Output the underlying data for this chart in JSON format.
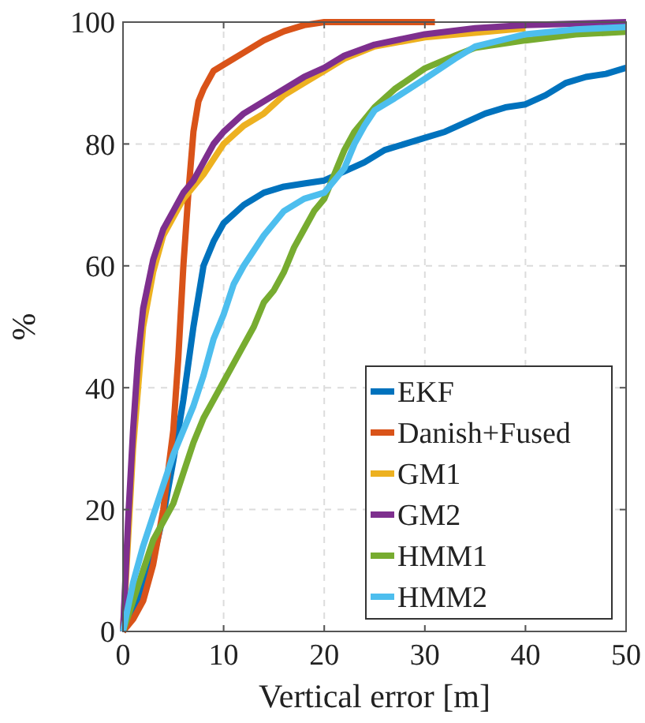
{
  "chart_data": {
    "type": "line",
    "xlabel": "Vertical error [m]",
    "ylabel": "%",
    "xlim": [
      0,
      50
    ],
    "ylim": [
      0,
      100
    ],
    "xticks": [
      0,
      10,
      20,
      30,
      40,
      50
    ],
    "yticks": [
      0,
      20,
      40,
      60,
      80,
      100
    ],
    "grid": true,
    "legend": "bottom right",
    "marker": "none",
    "line_style": "solid",
    "series": [
      {
        "name": "EKF",
        "color": "#0072bd",
        "x": [
          0,
          1,
          2,
          3,
          4,
          5,
          6,
          7,
          8,
          9,
          10,
          12,
          14,
          16,
          18,
          20,
          22,
          24,
          26,
          28,
          30,
          32,
          34,
          36,
          38,
          40,
          42,
          44,
          46,
          48,
          50
        ],
        "values": [
          0,
          3,
          7,
          12,
          19,
          28,
          38,
          50,
          60,
          64,
          67,
          70,
          72,
          73,
          73.5,
          74,
          75.5,
          77,
          79,
          80,
          81,
          82,
          83.5,
          85,
          86,
          86.5,
          88,
          90,
          91,
          91.5,
          92.5
        ]
      },
      {
        "name": "Danish+Fused",
        "color": "#d95319",
        "x": [
          0,
          1,
          2,
          3,
          4,
          5,
          5.5,
          6,
          6.5,
          7,
          7.5,
          8,
          9,
          10,
          12,
          14,
          16,
          18,
          20,
          31
        ],
        "values": [
          0,
          2,
          5,
          11,
          20,
          33,
          45,
          60,
          72,
          82,
          87,
          89,
          92,
          93,
          95,
          97,
          98.5,
          99.5,
          100,
          100
        ]
      },
      {
        "name": "GM1",
        "color": "#edb120",
        "x": [
          0,
          0.5,
          1,
          2,
          3,
          4,
          5,
          6,
          8,
          10,
          12,
          14,
          16,
          18,
          20,
          22,
          25,
          30,
          40
        ],
        "values": [
          0,
          15,
          30,
          50,
          59,
          65,
          68,
          71,
          75,
          80,
          83,
          85,
          88,
          90,
          92,
          94,
          96,
          97.5,
          99
        ]
      },
      {
        "name": "GM2",
        "color": "#7e2f8e",
        "x": [
          0,
          0.5,
          1,
          1.5,
          2,
          3,
          4,
          5,
          6,
          7,
          8,
          9,
          10,
          12,
          14,
          16,
          18,
          20,
          22,
          25,
          30,
          35,
          40,
          50
        ],
        "values": [
          0,
          18,
          33,
          45,
          53,
          61,
          66,
          69,
          72,
          74,
          77,
          80,
          82,
          85,
          87,
          89,
          91,
          92.5,
          94.5,
          96.3,
          98,
          99,
          99.5,
          100
        ]
      },
      {
        "name": "HMM1",
        "color": "#77ac30",
        "x": [
          0,
          1,
          2,
          3,
          4,
          5,
          6,
          7,
          8,
          9,
          10,
          11,
          12,
          13,
          14,
          15,
          16,
          17,
          18,
          19,
          20,
          21,
          22,
          23,
          24,
          25,
          27,
          30,
          33,
          35,
          40,
          45,
          50
        ],
        "values": [
          0,
          5,
          10,
          15,
          18,
          21,
          26,
          31,
          35,
          38,
          41,
          44,
          47,
          50,
          54,
          56,
          59,
          63,
          66,
          69,
          71,
          75,
          79,
          82,
          84,
          86,
          89,
          92.4,
          94.5,
          95.8,
          97,
          98,
          98.4
        ]
      },
      {
        "name": "HMM2",
        "color": "#4dbeee",
        "x": [
          0,
          1,
          2,
          3,
          4,
          5,
          6,
          7,
          8,
          9,
          10,
          11,
          12,
          14,
          16,
          18,
          20,
          22,
          23,
          24,
          25,
          27,
          30,
          33,
          35,
          40,
          45,
          50
        ],
        "values": [
          0,
          8,
          14,
          19,
          24,
          29,
          33,
          37,
          42,
          48,
          52,
          57,
          60,
          65,
          69,
          71,
          72,
          76,
          80,
          83,
          85.5,
          87.5,
          90.7,
          94,
          96,
          98,
          98.8,
          99.2
        ]
      }
    ]
  }
}
